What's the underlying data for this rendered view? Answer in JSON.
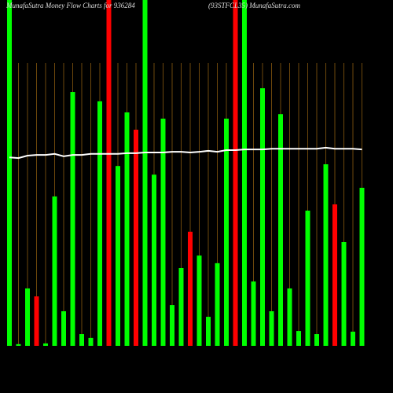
{
  "chart_data": {
    "type": "bar",
    "title": "MunafaSutra  Money Flow  Charts for 936284",
    "subtitle": "(93STFCL35)  MunafaSutra.com",
    "values": [
      100,
      0.5,
      16.6,
      14.3,
      0.7,
      43.2,
      10,
      73.4,
      3.4,
      2.3,
      70.7,
      100,
      52,
      67.5,
      62.5,
      100,
      49.5,
      65.7,
      11.8,
      22.5,
      33,
      26.1,
      8.4,
      23.9,
      65.7,
      100,
      100,
      18.6,
      74.5,
      10,
      67,
      16.6,
      4.3,
      39.1,
      3.4,
      52.5,
      40.9,
      30,
      4.1,
      45.7
    ],
    "colors": [
      "#00ff00",
      "#00ff00",
      "#00ff00",
      "#ff0000",
      "#00ff00",
      "#00ff00",
      "#00ff00",
      "#00ff00",
      "#00ff00",
      "#00ff00",
      "#00ff00",
      "#ff0000",
      "#00ff00",
      "#00ff00",
      "#ff0000",
      "#00ff00",
      "#00ff00",
      "#00ff00",
      "#00ff00",
      "#00ff00",
      "#ff0000",
      "#00ff00",
      "#00ff00",
      "#00ff00",
      "#00ff00",
      "#ff0000",
      "#00ff00",
      "#00ff00",
      "#00ff00",
      "#00ff00",
      "#00ff00",
      "#00ff00",
      "#00ff00",
      "#00ff00",
      "#00ff00",
      "#00ff00",
      "#ff0000",
      "#00ff00",
      "#00ff00",
      "#00ff00"
    ],
    "line": {
      "color": "#ffffff",
      "values": [
        54.5,
        54.3,
        55,
        55.2,
        55.2,
        55.5,
        54.8,
        55.2,
        55.2,
        55.5,
        55.5,
        55.5,
        55.5,
        55.7,
        55.7,
        55.9,
        55.9,
        55.9,
        56.1,
        56.1,
        55.9,
        56.1,
        56.4,
        56.1,
        56.6,
        56.6,
        56.8,
        56.8,
        56.8,
        57,
        57,
        57,
        57,
        57,
        57,
        57.3,
        57,
        57,
        57,
        56.8
      ]
    },
    "ylim": [
      0,
      100
    ]
  }
}
